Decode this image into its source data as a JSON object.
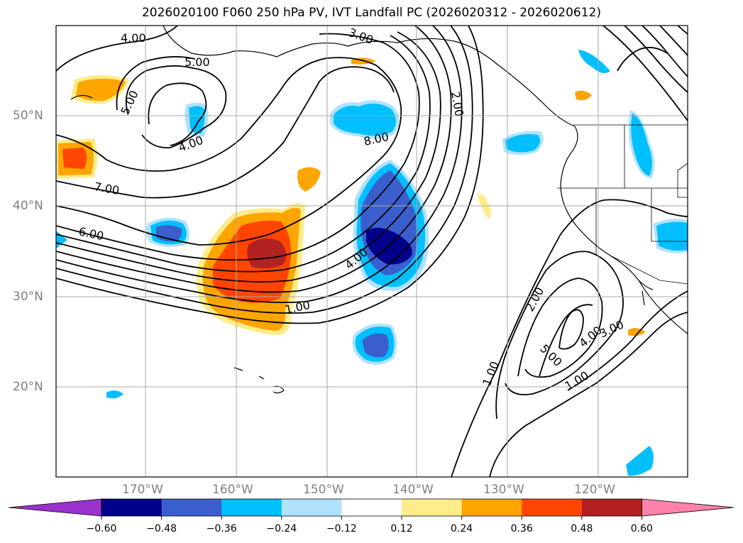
{
  "title": "2026020100 F060 250 hPa PV, IVT Landfall PC (2026020312 - 2026020612)",
  "lat_labels": [
    "50°N",
    "40°N",
    "30°N",
    "20°N"
  ],
  "lon_labels": [
    "170°W",
    "160°W",
    "150°W",
    "140°W",
    "130°W",
    "120°W"
  ],
  "contour_labels": {
    "c1": "4.00",
    "c2": "5.00",
    "c3": "3.00",
    "c4": "5.00",
    "c5": "4.00",
    "c6": "8.00",
    "c7": "2.00",
    "c8": "7.00",
    "c9": "6.00",
    "c10": "4.00",
    "c11": "1.00",
    "c12": "2.00",
    "c13": "5.00",
    "c14": "4.00",
    "c15": "3.00",
    "c16": "1.00",
    "c17": "1.00"
  },
  "colorbar": {
    "ticks": [
      "−0.60",
      "−0.48",
      "−0.36",
      "−0.24",
      "−0.12",
      "0.12",
      "0.24",
      "0.36",
      "0.48",
      "0.60"
    ],
    "colors": [
      "#9932cc",
      "#00008b",
      "#3a5fcd",
      "#00bfff",
      "#b0e2ff",
      "#ffffff",
      "#ffec8b",
      "#ffa500",
      "#ff4500",
      "#b22222",
      "#ff82ab"
    ]
  }
}
